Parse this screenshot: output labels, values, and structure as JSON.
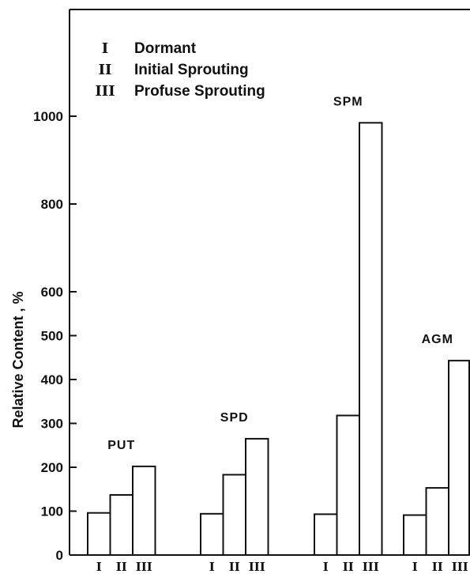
{
  "chart_data": {
    "type": "bar",
    "ylabel": "Relative Content , %",
    "ylim": [
      0,
      1000
    ],
    "yticks": [
      "0",
      "100",
      "200",
      "300",
      "400",
      "500",
      "600",
      "800",
      "1000"
    ],
    "categories": [
      "I",
      "II",
      "III"
    ],
    "legend": {
      "placement": "top-left",
      "entries": [
        {
          "symbol": "I",
          "label": "Dormant"
        },
        {
          "symbol": "II",
          "label": "Initial Sprouting"
        },
        {
          "symbol": "III",
          "label": "Profuse Sprouting"
        }
      ]
    },
    "groups": [
      {
        "name": "PUT",
        "values": [
          96,
          137,
          202
        ]
      },
      {
        "name": "SPD",
        "values": [
          94,
          183,
          265
        ]
      },
      {
        "name": "SPM",
        "values": [
          93,
          318,
          985
        ]
      },
      {
        "name": "AGM",
        "values": [
          91,
          153,
          443
        ]
      }
    ]
  }
}
